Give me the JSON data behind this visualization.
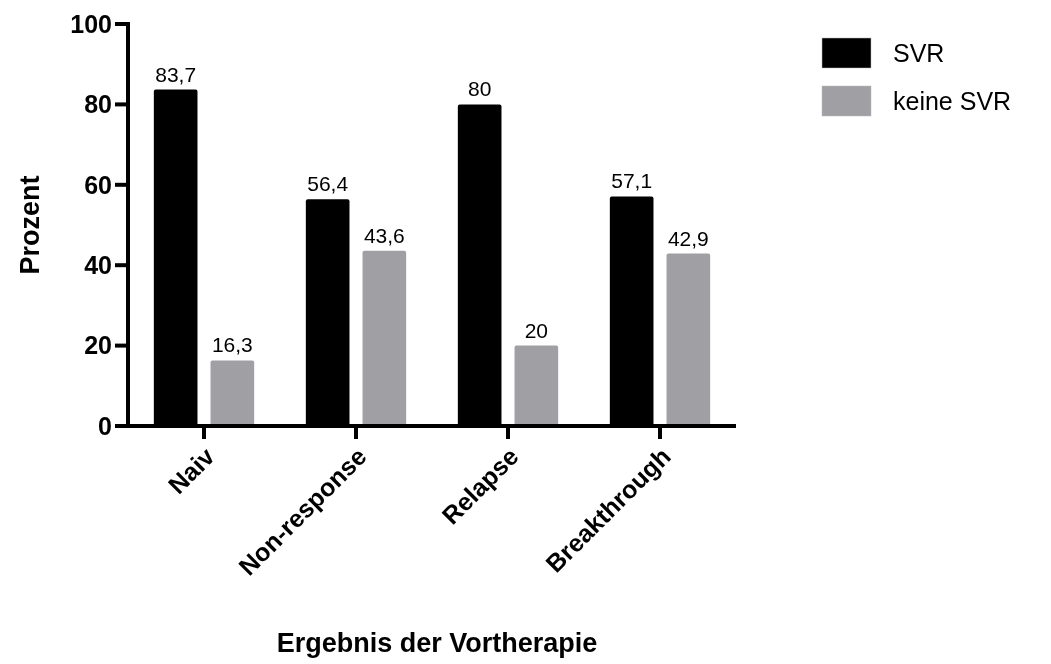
{
  "chart_data": {
    "type": "bar",
    "xlabel": "Ergebnis der Vortherapie",
    "ylabel": "Prozent",
    "categories": [
      "Naiv",
      "Non-response",
      "Relapse",
      "Breakthrough"
    ],
    "series": [
      {
        "name": "SVR",
        "color": "#000000",
        "values": [
          83.7,
          56.4,
          80,
          57.1
        ],
        "value_labels": [
          "83,7",
          "56,4",
          "80",
          "57,1"
        ]
      },
      {
        "name": "keine SVR",
        "color": "#a0a0a4",
        "values": [
          16.3,
          43.6,
          20,
          42.9
        ],
        "value_labels": [
          "16,3",
          "43,6",
          "20",
          "42,9"
        ]
      }
    ],
    "ylim": [
      0,
      100
    ],
    "yticks": [
      0,
      20,
      40,
      60,
      80,
      100
    ],
    "grid": false,
    "legend": "top right"
  }
}
